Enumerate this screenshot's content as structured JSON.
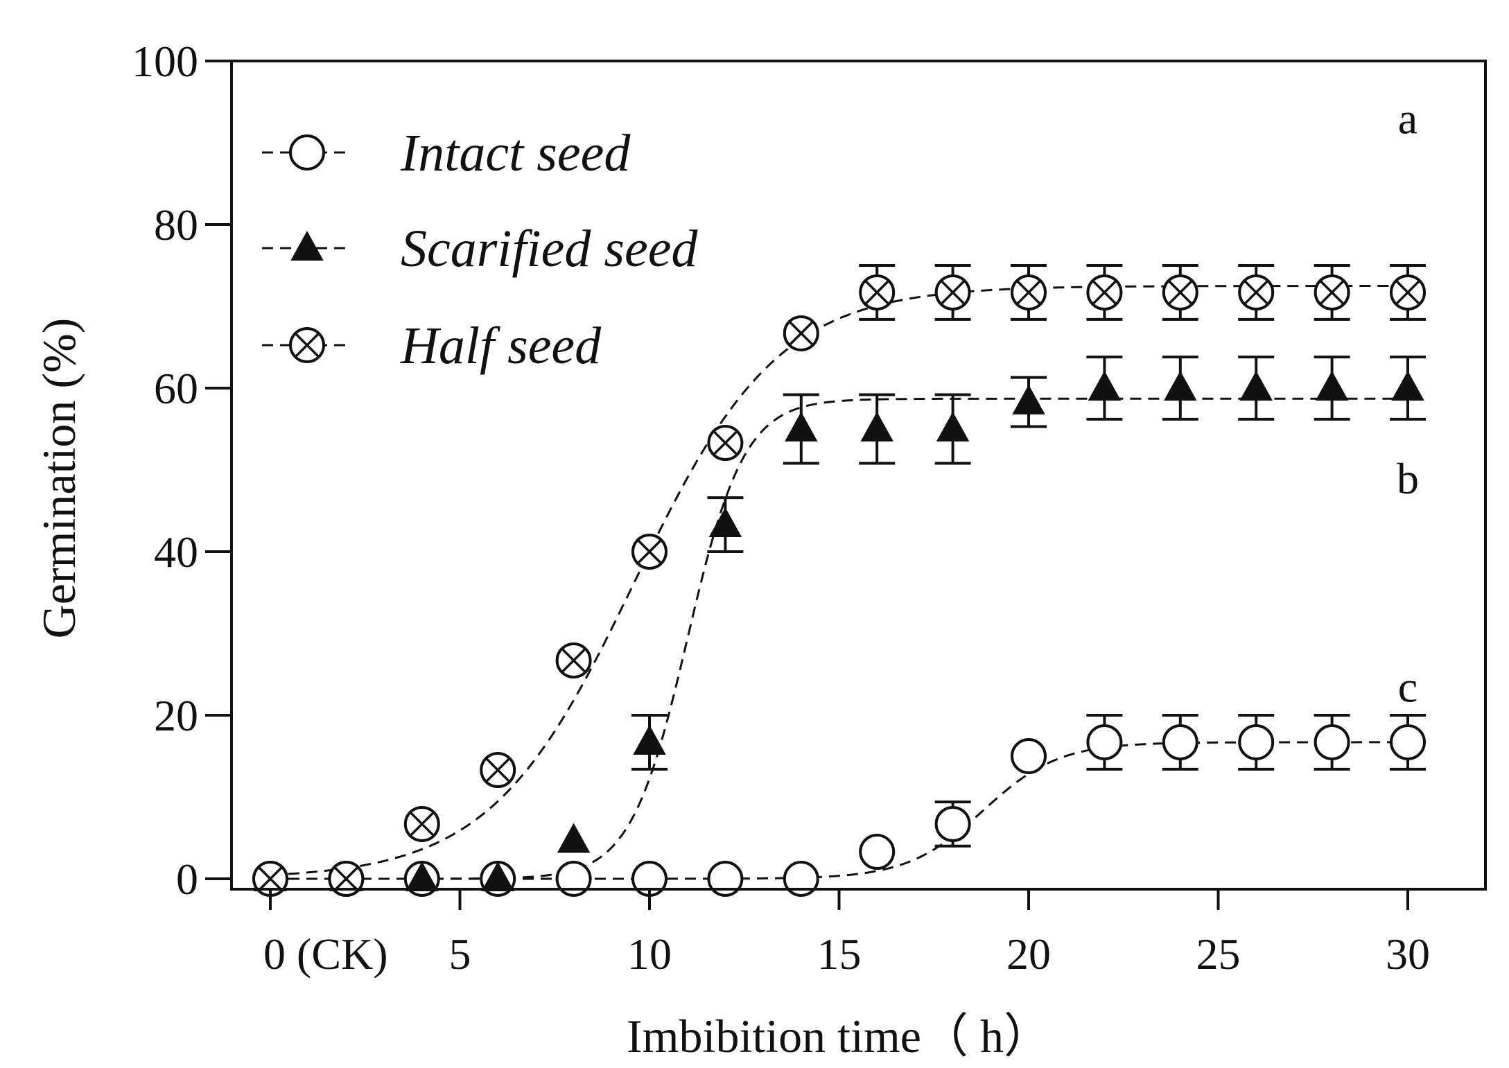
{
  "chart_data": {
    "type": "line",
    "title": "",
    "xlabel": "Imbibition time（ h）",
    "ylabel": "Germination (%)",
    "xlim": [
      -1,
      32
    ],
    "ylim": [
      0,
      100
    ],
    "x_ticks": [
      0,
      5,
      10,
      15,
      20,
      25,
      30
    ],
    "x_tick_labels": [
      "0 (CK)",
      "5",
      "10",
      "15",
      "20",
      "25",
      "30"
    ],
    "y_ticks": [
      0,
      20,
      40,
      60,
      80,
      100
    ],
    "y_tick_labels": [
      "0",
      "20",
      "40",
      "60",
      "80",
      "100"
    ],
    "grid": false,
    "legend_position": "top-left",
    "x": [
      0,
      2,
      4,
      6,
      8,
      10,
      12,
      14,
      16,
      18,
      20,
      22,
      24,
      26,
      28,
      30
    ],
    "series": [
      {
        "name": "Intact seed",
        "marker": "open-circle",
        "values": [
          0,
          0,
          0,
          0,
          0,
          0,
          0,
          0,
          3.3,
          6.7,
          15,
          16.7,
          16.7,
          16.7,
          16.7,
          16.7
        ],
        "errors": [
          0,
          0,
          0,
          0,
          0,
          0,
          0,
          0,
          0,
          2.7,
          0,
          3.3,
          3.3,
          3.3,
          3.3,
          3.3
        ],
        "fit": {
          "max": 16.7,
          "mid": 18.8,
          "scale": 1.0
        },
        "label": "c"
      },
      {
        "name": "Scarified seed",
        "marker": "filled-triangle",
        "values": [
          0,
          0,
          0,
          0,
          4.7,
          16.7,
          43.3,
          55,
          55,
          55,
          58.3,
          60,
          60,
          60,
          60,
          60
        ],
        "errors": [
          0,
          0,
          0,
          0,
          0,
          3.3,
          3.3,
          4.2,
          4.2,
          4.2,
          3.0,
          3.8,
          3.8,
          3.8,
          3.8,
          3.8
        ],
        "fit": {
          "max": 58.7,
          "mid": 11.0,
          "scale": 0.75
        },
        "label": "b"
      },
      {
        "name": "Half seed",
        "marker": "crossed-circle",
        "values": [
          0,
          0,
          6.7,
          13.3,
          26.7,
          40,
          53.3,
          66.7,
          71.7,
          71.7,
          71.7,
          71.7,
          71.7,
          71.7,
          71.7,
          71.7
        ],
        "errors": [
          0,
          0,
          0,
          0,
          0,
          0,
          0,
          0,
          3.3,
          3.3,
          3.3,
          3.3,
          3.3,
          3.3,
          3.3,
          3.3
        ],
        "fit": {
          "max": 72.5,
          "mid": 9.6,
          "scale": 1.9
        },
        "label": "a"
      }
    ],
    "significance_labels": [
      "a",
      "b",
      "c"
    ]
  }
}
